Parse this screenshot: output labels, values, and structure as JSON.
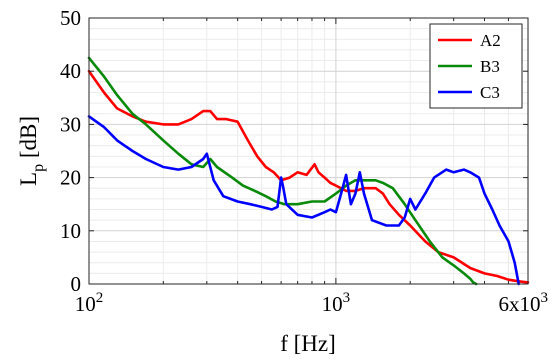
{
  "chart_data": {
    "type": "line",
    "title": "",
    "xlabel": "f [Hz]",
    "ylabel": "L_p [dB]",
    "x_scale": "log",
    "xlim": [
      100,
      6000
    ],
    "ylim": [
      0,
      50
    ],
    "x_ticks": [
      {
        "value": 100,
        "base": "10",
        "exp": "2",
        "mult": ""
      },
      {
        "value": 1000,
        "base": "10",
        "exp": "3",
        "mult": ""
      },
      {
        "value": 6000,
        "base": "10",
        "exp": "3",
        "mult": "6x"
      }
    ],
    "y_ticks": [
      0,
      10,
      20,
      30,
      40,
      50
    ],
    "grid": true,
    "legend_position": "top-right",
    "series": [
      {
        "name": "A2",
        "color": "#ff0000",
        "x": [
          100,
          115,
          130,
          150,
          170,
          200,
          230,
          260,
          290,
          310,
          330,
          360,
          400,
          440,
          480,
          520,
          560,
          600,
          650,
          700,
          760,
          820,
          850,
          900,
          950,
          1000,
          1100,
          1200,
          1300,
          1450,
          1550,
          1650,
          1800,
          2000,
          2300,
          2600,
          3000,
          3500,
          4000,
          4500,
          5000,
          5500,
          6000
        ],
        "y": [
          40,
          36,
          33,
          31.5,
          30.5,
          30,
          30,
          31,
          32.5,
          32.5,
          31,
          31,
          30.5,
          27,
          24,
          22,
          21,
          19.5,
          20,
          21,
          20.5,
          22.5,
          21,
          20,
          19,
          18.5,
          17.5,
          17.5,
          18,
          18,
          17,
          15,
          13,
          11,
          8,
          6,
          5,
          3,
          2,
          1.5,
          0.8,
          0.5,
          0.3
        ]
      },
      {
        "name": "B3",
        "color": "#0a8a0a",
        "x": [
          100,
          115,
          130,
          150,
          170,
          200,
          230,
          260,
          290,
          310,
          330,
          380,
          420,
          470,
          520,
          570,
          620,
          700,
          800,
          900,
          1000,
          1100,
          1200,
          1300,
          1450,
          1550,
          1700,
          1900,
          2100,
          2400,
          2700,
          3000,
          3300,
          3500,
          3600,
          3700
        ],
        "y": [
          42.5,
          39,
          35.5,
          32,
          30,
          27,
          24.5,
          22.5,
          22,
          23.5,
          22,
          20,
          18.5,
          17.5,
          16.5,
          15.5,
          15,
          15,
          15.5,
          15.5,
          17,
          18.5,
          19.5,
          19.5,
          19.5,
          19,
          18,
          15,
          12,
          8,
          5,
          3.5,
          2,
          1,
          0.3,
          0
        ]
      },
      {
        "name": "C3",
        "color": "#0000ff",
        "x": [
          100,
          115,
          130,
          150,
          170,
          200,
          230,
          260,
          290,
          300,
          320,
          350,
          400,
          450,
          500,
          550,
          580,
          600,
          610,
          630,
          700,
          800,
          900,
          950,
          1000,
          1050,
          1100,
          1150,
          1200,
          1250,
          1300,
          1400,
          1600,
          1800,
          1900,
          2000,
          2100,
          2300,
          2500,
          2800,
          3000,
          3300,
          3500,
          3800,
          4000,
          4300,
          4600,
          5000,
          5300,
          5500
        ],
        "y": [
          31.5,
          29.5,
          27,
          25,
          23.5,
          22,
          21.5,
          22,
          23.5,
          24.5,
          19.5,
          16.5,
          15.5,
          15,
          14.5,
          14,
          14.5,
          20,
          18.5,
          15,
          13,
          12.5,
          13.5,
          14,
          13.5,
          17,
          20.5,
          15,
          17,
          21,
          17,
          12,
          11,
          11,
          12.5,
          16,
          14,
          17,
          20,
          21.5,
          21,
          21.5,
          21,
          20,
          17,
          14,
          11,
          8,
          4,
          0
        ]
      }
    ]
  }
}
